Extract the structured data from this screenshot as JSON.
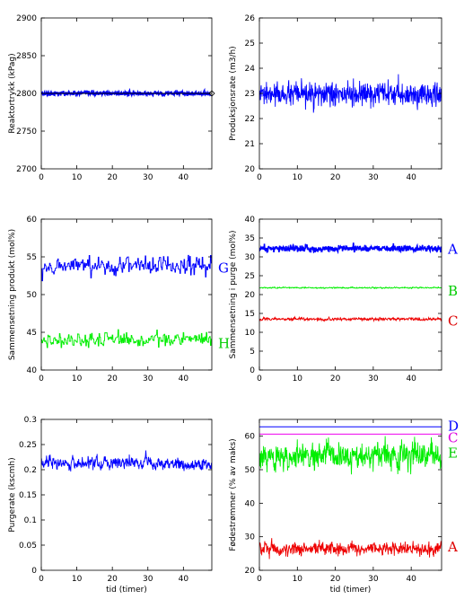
{
  "chart_data": [
    {
      "type": "line",
      "ylabel": "Reaktortrykk (kPag)",
      "xlabel": "",
      "xlim": [
        0,
        48
      ],
      "ylim": [
        2700,
        2900
      ],
      "xticks": [
        0,
        10,
        20,
        30,
        40
      ],
      "yticks": [
        2700,
        2750,
        2800,
        2850,
        2900
      ],
      "series": [
        {
          "name": "",
          "color": "#0000ff",
          "mean": 2800,
          "noise": 1.2,
          "smooth": 0.2,
          "dark": true
        },
        {
          "name": "",
          "color": "#000000",
          "mean": 2800,
          "noise": 0,
          "setpoint": true
        }
      ],
      "labels": []
    },
    {
      "type": "line",
      "ylabel": "Produksjonsrate (m3/h)",
      "xlabel": "",
      "xlim": [
        0,
        48
      ],
      "ylim": [
        20,
        26
      ],
      "xticks": [
        0,
        10,
        20,
        30,
        40
      ],
      "yticks": [
        20,
        21,
        22,
        23,
        24,
        25,
        26
      ],
      "series": [
        {
          "name": "",
          "color": "#0000ff",
          "mean": 22.95,
          "noise": 0.22,
          "smooth": 0.0
        }
      ],
      "labels": []
    },
    {
      "type": "line",
      "ylabel": "Sammensetning produkt (mol%)",
      "xlabel": "",
      "xlim": [
        0,
        48
      ],
      "ylim": [
        40,
        60
      ],
      "xticks": [
        0,
        10,
        20,
        30,
        40
      ],
      "yticks": [
        40,
        45,
        50,
        55,
        60
      ],
      "series": [
        {
          "name": "G",
          "color": "#0000ff",
          "mean": 53.8,
          "noise": 0.55,
          "smooth": 0.4,
          "steps": true
        },
        {
          "name": "H",
          "color": "#00ee00",
          "mean": 44.0,
          "noise": 0.5,
          "smooth": 0.4,
          "steps": true
        }
      ],
      "labels": [
        {
          "text": "G",
          "color": "#0000ff",
          "value": 53.5
        },
        {
          "text": "H",
          "color": "#00cc00",
          "value": 43.5
        }
      ]
    },
    {
      "type": "line",
      "ylabel": "Sammensetning i purge (mol%)",
      "xlabel": "",
      "xlim": [
        0,
        48
      ],
      "ylim": [
        0,
        40
      ],
      "xticks": [
        0,
        10,
        20,
        30,
        40
      ],
      "yticks": [
        0,
        5,
        10,
        15,
        20,
        25,
        30,
        35,
        40
      ],
      "series": [
        {
          "name": "A",
          "color": "#0000ff",
          "mean": 32.2,
          "noise": 0.35,
          "smooth": 0.2,
          "dark": true
        },
        {
          "name": "B",
          "color": "#00ee00",
          "mean": 21.8,
          "noise": 0.1,
          "smooth": 0.5
        },
        {
          "name": "C",
          "color": "#ee0000",
          "mean": 13.5,
          "noise": 0.2,
          "smooth": 0.4
        }
      ],
      "labels": [
        {
          "text": "A",
          "color": "#0000ff",
          "value": 32
        },
        {
          "text": "B",
          "color": "#00cc00",
          "value": 21
        },
        {
          "text": "C",
          "color": "#dd0000",
          "value": 13
        }
      ]
    },
    {
      "type": "line",
      "ylabel": "Purgerate (kscmh)",
      "xlabel": "tid (timer)",
      "xlim": [
        0,
        48
      ],
      "ylim": [
        0,
        0.3
      ],
      "xticks": [
        0,
        10,
        20,
        30,
        40
      ],
      "yticks": [
        0,
        0.05,
        0.1,
        0.15,
        0.2,
        0.25,
        0.3
      ],
      "series": [
        {
          "name": "",
          "color": "#0000ff",
          "mean": 0.212,
          "noise": 0.008,
          "smooth": 0.55
        }
      ],
      "labels": []
    },
    {
      "type": "line",
      "ylabel": "Fødestrømmer (% av maks)",
      "xlabel": "tid (timer)",
      "xlim": [
        0,
        48
      ],
      "ylim": [
        20,
        65
      ],
      "xticks": [
        0,
        10,
        20,
        30,
        40
      ],
      "yticks": [
        20,
        30,
        40,
        50,
        60
      ],
      "series": [
        {
          "name": "D",
          "color": "#0000ff",
          "mean": 62.8,
          "noise": 0,
          "flat": true
        },
        {
          "name": "C",
          "color": "#ee00ee",
          "mean": 60.6,
          "noise": 0,
          "flat": true
        },
        {
          "name": "E",
          "color": "#00ee00",
          "mean": 54.2,
          "noise": 2.1,
          "smooth": 0.35
        },
        {
          "name": "A",
          "color": "#ee0000",
          "mean": 26.5,
          "noise": 0.9,
          "smooth": 0.3
        }
      ],
      "labels": [
        {
          "text": "D",
          "color": "#0000ff",
          "value": 63
        },
        {
          "text": "C",
          "color": "#dd00dd",
          "value": 59.5
        },
        {
          "text": "E",
          "color": "#00cc00",
          "value": 55
        },
        {
          "text": "A",
          "color": "#dd0000",
          "value": 27
        }
      ]
    }
  ]
}
